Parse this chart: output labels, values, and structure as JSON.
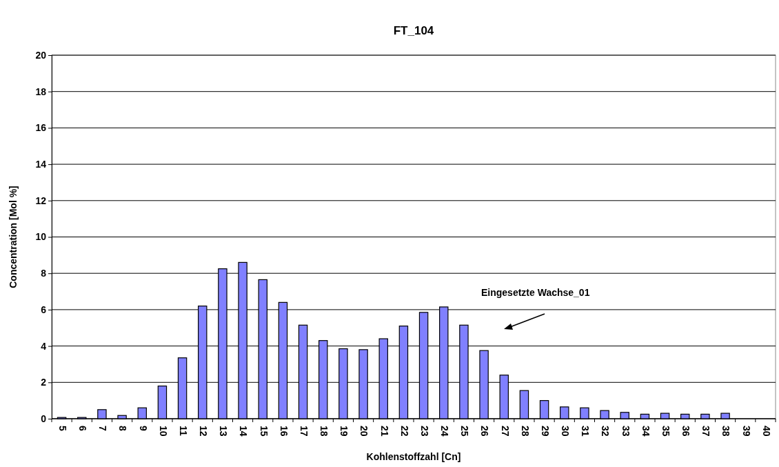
{
  "chart_data": {
    "type": "bar",
    "title": "FT_104",
    "xlabel": "Kohlenstoffzahl [Cn]",
    "ylabel": "Concentration [Mol %]",
    "categories": [
      "5",
      "6",
      "7",
      "8",
      "9",
      "10",
      "11",
      "12",
      "13",
      "14",
      "15",
      "16",
      "17",
      "18",
      "19",
      "20",
      "21",
      "22",
      "23",
      "24",
      "25",
      "26",
      "27",
      "28",
      "29",
      "30",
      "31",
      "32",
      "33",
      "34",
      "35",
      "36",
      "37",
      "38",
      "39",
      "40"
    ],
    "values": [
      0.07,
      0.07,
      0.5,
      0.18,
      0.6,
      1.8,
      3.35,
      6.2,
      8.25,
      8.6,
      7.65,
      6.4,
      5.15,
      4.3,
      3.85,
      3.8,
      4.4,
      5.1,
      5.85,
      6.15,
      5.15,
      3.75,
      2.4,
      1.55,
      1.0,
      0.65,
      0.6,
      0.45,
      0.35,
      0.25,
      0.3,
      0.25,
      0.25,
      0.3,
      0,
      0
    ],
    "color": "#8080ff",
    "ylim": [
      0,
      20
    ],
    "yticks": [
      0,
      2,
      4,
      6,
      8,
      10,
      12,
      14,
      16,
      18,
      20
    ],
    "grid": "y",
    "annotations": [
      "Eingesetzte Wachse_01"
    ]
  }
}
